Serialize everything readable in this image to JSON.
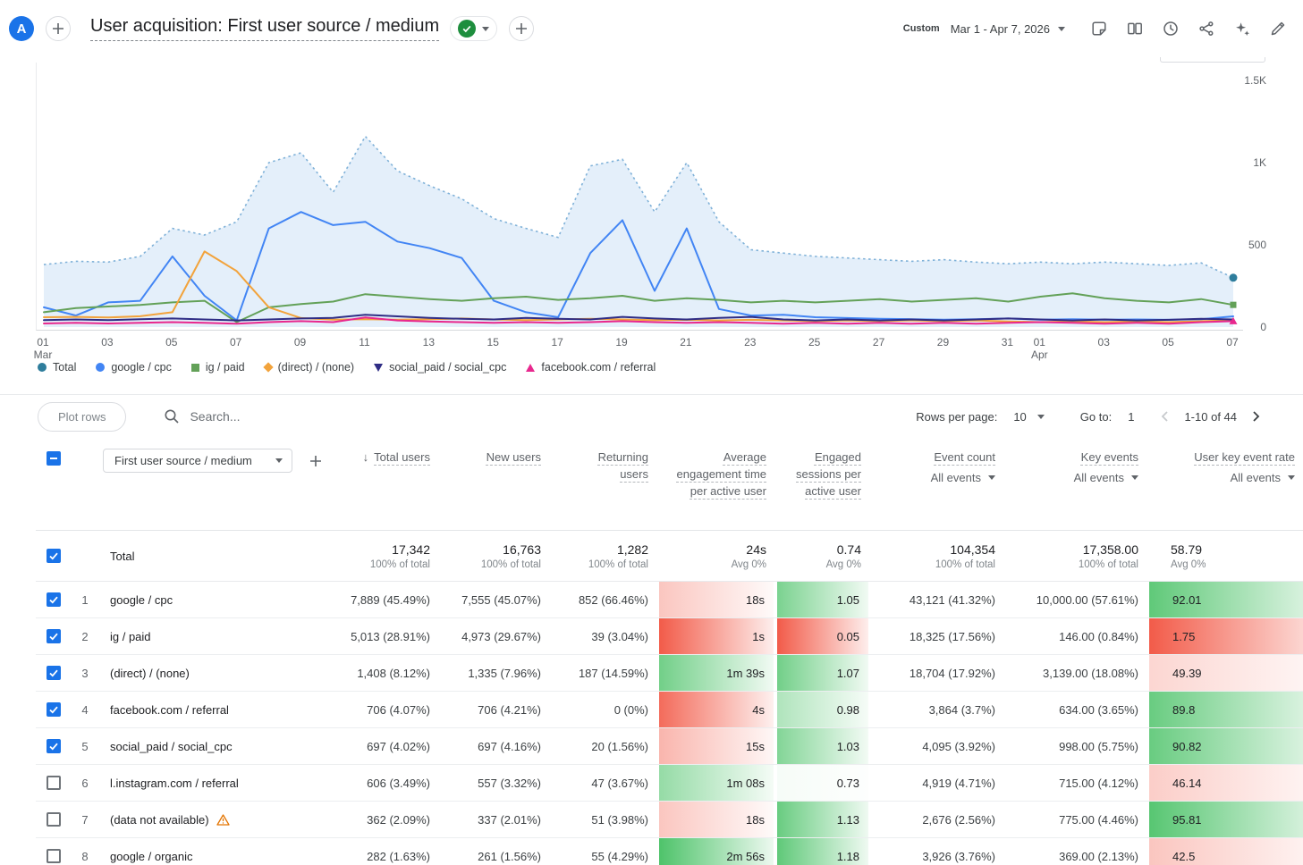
{
  "theme": {
    "accent_blue": "#1a73e8",
    "check_green": "#1e8e3e",
    "warn_orange": "#e37400",
    "annotation_red": "#df2020",
    "heat_red": "#f25b49",
    "heat_green": "#4ec36a"
  },
  "header": {
    "avatar_letter": "A",
    "title": "User acquisition: First user source / medium",
    "date_preset_label": "Custom",
    "date_range": "Mar 1 - Apr 7, 2026",
    "toolbar_icons": [
      "page-notes",
      "comparisons",
      "recent",
      "share",
      "insights",
      "edit"
    ]
  },
  "chart_data": {
    "type": "line",
    "title": "",
    "xlabel": "",
    "ylabel": "",
    "ylim": [
      0,
      1500
    ],
    "grid": false,
    "legend_position": "bottom",
    "y_ticks": [
      {
        "v": 1500,
        "label": "1.5K"
      },
      {
        "v": 1000,
        "label": "1K"
      },
      {
        "v": 500,
        "label": "500"
      },
      {
        "v": 0,
        "label": "0"
      }
    ],
    "x_ticks": [
      {
        "i": 0,
        "label": "01",
        "sub": "Mar"
      },
      {
        "i": 2,
        "label": "03"
      },
      {
        "i": 4,
        "label": "05"
      },
      {
        "i": 6,
        "label": "07"
      },
      {
        "i": 8,
        "label": "09"
      },
      {
        "i": 10,
        "label": "11"
      },
      {
        "i": 12,
        "label": "13"
      },
      {
        "i": 14,
        "label": "15"
      },
      {
        "i": 16,
        "label": "17"
      },
      {
        "i": 18,
        "label": "19"
      },
      {
        "i": 20,
        "label": "21"
      },
      {
        "i": 22,
        "label": "23"
      },
      {
        "i": 24,
        "label": "25"
      },
      {
        "i": 26,
        "label": "27"
      },
      {
        "i": 28,
        "label": "29"
      },
      {
        "i": 30,
        "label": "31"
      },
      {
        "i": 31,
        "label": "01",
        "sub": "Apr"
      },
      {
        "i": 33,
        "label": "03"
      },
      {
        "i": 35,
        "label": "05"
      },
      {
        "i": 37,
        "label": "07"
      }
    ],
    "series": [
      {
        "name": "Total",
        "style": "area-dotted",
        "color": "#7fb1d8",
        "fill": "#e4effa",
        "marker_color": "#2e7d9c",
        "end_marker": "circle",
        "values": [
          380,
          400,
          395,
          430,
          600,
          560,
          640,
          1000,
          1060,
          820,
          1160,
          950,
          860,
          780,
          660,
          600,
          545,
          980,
          1020,
          700,
          1000,
          640,
          470,
          450,
          430,
          420,
          410,
          400,
          410,
          395,
          385,
          395,
          385,
          395,
          385,
          375,
          390,
          300
        ]
      },
      {
        "name": "google / cpc",
        "style": "line",
        "color": "#4285f4",
        "values": [
          120,
          70,
          150,
          160,
          430,
          190,
          40,
          600,
          700,
          620,
          640,
          520,
          480,
          420,
          160,
          90,
          60,
          450,
          650,
          220,
          600,
          110,
          70,
          75,
          60,
          55,
          50,
          48,
          45,
          48,
          52,
          45,
          48,
          45,
          46,
          44,
          48,
          65
        ]
      },
      {
        "name": "ig / paid",
        "style": "line",
        "color": "#63a158",
        "end_marker": "square",
        "values": [
          90,
          115,
          125,
          135,
          150,
          160,
          30,
          120,
          140,
          155,
          200,
          185,
          170,
          160,
          175,
          185,
          165,
          175,
          190,
          160,
          175,
          165,
          150,
          160,
          150,
          160,
          170,
          155,
          165,
          175,
          155,
          185,
          205,
          175,
          160,
          150,
          170,
          135
        ]
      },
      {
        "name": "(direct) / (none)",
        "style": "line",
        "color": "#f2a33c",
        "values": [
          60,
          62,
          58,
          66,
          90,
          460,
          340,
          120,
          55,
          45,
          48,
          45,
          48,
          52,
          46,
          42,
          46,
          50,
          46,
          42,
          44,
          40,
          44,
          40,
          36,
          40,
          36,
          40,
          36,
          40,
          34,
          30,
          34,
          30,
          34,
          30,
          36,
          40
        ]
      },
      {
        "name": "social_paid / social_cpc",
        "style": "line",
        "color": "#2f2d85",
        "values": [
          42,
          46,
          42,
          48,
          52,
          46,
          40,
          46,
          52,
          56,
          75,
          65,
          56,
          50,
          46,
          56,
          50,
          46,
          62,
          52,
          46,
          56,
          62,
          46,
          40,
          46,
          40,
          46,
          40,
          46,
          52,
          46,
          40,
          46,
          40,
          44,
          50,
          46
        ]
      },
      {
        "name": "facebook.com / referral",
        "style": "line",
        "color": "#e8288e",
        "end_marker": "triangle",
        "values": [
          22,
          26,
          22,
          26,
          30,
          26,
          20,
          30,
          36,
          30,
          58,
          40,
          34,
          30,
          26,
          30,
          26,
          30,
          36,
          30,
          26,
          30,
          26,
          20,
          26,
          20,
          26,
          20,
          26,
          20,
          26,
          30,
          26,
          20,
          26,
          20,
          30,
          36
        ]
      }
    ]
  },
  "legend": {
    "items": [
      {
        "label": "Total",
        "marker": "circle",
        "color": "#2e7d9c"
      },
      {
        "label": "google / cpc",
        "marker": "circle",
        "color": "#4285f4"
      },
      {
        "label": "ig / paid",
        "marker": "square",
        "color": "#63a158"
      },
      {
        "label": "(direct) / (none)",
        "marker": "diamond",
        "color": "#f2a33c"
      },
      {
        "label": "social_paid / social_cpc",
        "marker": "triangle-down",
        "color": "#2f2d85"
      },
      {
        "label": "facebook.com / referral",
        "marker": "triangle-up",
        "color": "#e8288e"
      }
    ]
  },
  "controls": {
    "plot_rows_label": "Plot rows",
    "search_placeholder": "Search...",
    "rows_per_page_label": "Rows per page:",
    "rows_per_page_value": "10",
    "goto_label": "Go to:",
    "goto_value": "1",
    "pagination_range": "1-10 of 44"
  },
  "table": {
    "dimension_label": "First user source / medium",
    "columns": [
      {
        "key": "total_users",
        "label": "Total users",
        "sorted": true
      },
      {
        "key": "new_users",
        "label": "New users"
      },
      {
        "key": "returning_users",
        "label": "Returning users",
        "wrap": true
      },
      {
        "key": "avg_engagement_time",
        "label": "Average engagement time per active user",
        "heat": true
      },
      {
        "key": "engaged_sessions",
        "label": "Engaged sessions per active user",
        "heat": true
      },
      {
        "key": "event_count",
        "label": "Event count",
        "filter": "All events"
      },
      {
        "key": "key_events",
        "label": "Key events",
        "filter": "All events"
      },
      {
        "key": "user_key_event_rate",
        "label": "User key event rate",
        "filter": "All events",
        "heat": true
      }
    ],
    "totals": {
      "label": "Total",
      "cells": [
        [
          "17,342",
          "100% of total"
        ],
        [
          "16,763",
          "100% of total"
        ],
        [
          "1,282",
          "100% of total"
        ],
        [
          "24s",
          "Avg 0%"
        ],
        [
          "0.74",
          "Avg 0%"
        ],
        [
          "104,354",
          "100% of total"
        ],
        [
          "17,358.00",
          "100% of total"
        ],
        [
          "58.79",
          "Avg 0%"
        ]
      ]
    },
    "rows": [
      {
        "num": "1",
        "checked": true,
        "dim": "google / cpc",
        "dim_annotated": true,
        "cells": [
          {
            "v": "7,889 (45.49%)",
            "annotated": true
          },
          {
            "v": "7,555 (45.07%)"
          },
          {
            "v": "852 (66.46%)"
          },
          {
            "v": "18s",
            "heat": -0.35
          },
          {
            "v": "1.05",
            "heat": 0.75
          },
          {
            "v": "43,121 (41.32%)"
          },
          {
            "v": "10,000.00 (57.61%)"
          },
          {
            "v": "92.01",
            "heat": 0.9
          }
        ]
      },
      {
        "num": "2",
        "checked": true,
        "dim": "ig / paid",
        "cells": [
          {
            "v": "5,013 (28.91%)"
          },
          {
            "v": "4,973 (29.67%)"
          },
          {
            "v": "39 (3.04%)"
          },
          {
            "v": "1s",
            "heat": -1
          },
          {
            "v": "0.05",
            "heat": -1
          },
          {
            "v": "18,325 (17.56%)"
          },
          {
            "v": "146.00 (0.84%)"
          },
          {
            "v": "1.75",
            "heat": -1
          }
        ]
      },
      {
        "num": "3",
        "checked": true,
        "dim": "(direct) / (none)",
        "cells": [
          {
            "v": "1,408 (8.12%)"
          },
          {
            "v": "1,335 (7.96%)"
          },
          {
            "v": "187 (14.59%)"
          },
          {
            "v": "1m 39s",
            "heat": 0.8
          },
          {
            "v": "1.07",
            "heat": 0.8
          },
          {
            "v": "18,704 (17.92%)"
          },
          {
            "v": "3,139.00 (18.08%)"
          },
          {
            "v": "49.39",
            "heat": -0.25
          }
        ]
      },
      {
        "num": "4",
        "checked": true,
        "dim": "facebook.com / referral",
        "cells": [
          {
            "v": "706 (4.07%)"
          },
          {
            "v": "706 (4.21%)"
          },
          {
            "v": "0 (0%)"
          },
          {
            "v": "4s",
            "heat": -0.9
          },
          {
            "v": "0.98",
            "heat": 0.45
          },
          {
            "v": "3,864 (3.7%)"
          },
          {
            "v": "634.00 (3.65%)"
          },
          {
            "v": "89.8",
            "heat": 0.85
          }
        ]
      },
      {
        "num": "5",
        "checked": true,
        "dim": "social_paid / social_cpc",
        "cells": [
          {
            "v": "697 (4.02%)"
          },
          {
            "v": "697 (4.16%)"
          },
          {
            "v": "20 (1.56%)"
          },
          {
            "v": "15s",
            "heat": -0.45
          },
          {
            "v": "1.03",
            "heat": 0.7
          },
          {
            "v": "4,095 (3.92%)"
          },
          {
            "v": "998.00 (5.75%)"
          },
          {
            "v": "90.82",
            "heat": 0.85
          }
        ]
      },
      {
        "num": "6",
        "checked": false,
        "dim": "l.instagram.com / referral",
        "cells": [
          {
            "v": "606 (3.49%)"
          },
          {
            "v": "557 (3.32%)"
          },
          {
            "v": "47 (3.67%)"
          },
          {
            "v": "1m 08s",
            "heat": 0.6
          },
          {
            "v": "0.73",
            "heat": 0.05
          },
          {
            "v": "4,919 (4.71%)"
          },
          {
            "v": "715.00 (4.12%)"
          },
          {
            "v": "46.14",
            "heat": -0.3
          }
        ]
      },
      {
        "num": "7",
        "checked": false,
        "dim": "(data not available)",
        "warn": true,
        "cells": [
          {
            "v": "362 (2.09%)"
          },
          {
            "v": "337 (2.01%)"
          },
          {
            "v": "51 (3.98%)"
          },
          {
            "v": "18s",
            "heat": -0.35
          },
          {
            "v": "1.13",
            "heat": 0.85
          },
          {
            "v": "2,676 (2.56%)"
          },
          {
            "v": "775.00 (4.46%)"
          },
          {
            "v": "95.81",
            "heat": 0.95
          }
        ]
      },
      {
        "num": "8",
        "checked": false,
        "dim": "google / organic",
        "cells": [
          {
            "v": "282 (1.63%)"
          },
          {
            "v": "261 (1.56%)"
          },
          {
            "v": "55 (4.29%)"
          },
          {
            "v": "2m 56s",
            "heat": 1
          },
          {
            "v": "1.18",
            "heat": 0.9
          },
          {
            "v": "3,926 (3.76%)"
          },
          {
            "v": "369.00 (2.13%)"
          },
          {
            "v": "42.5",
            "heat": -0.35
          }
        ]
      }
    ]
  }
}
